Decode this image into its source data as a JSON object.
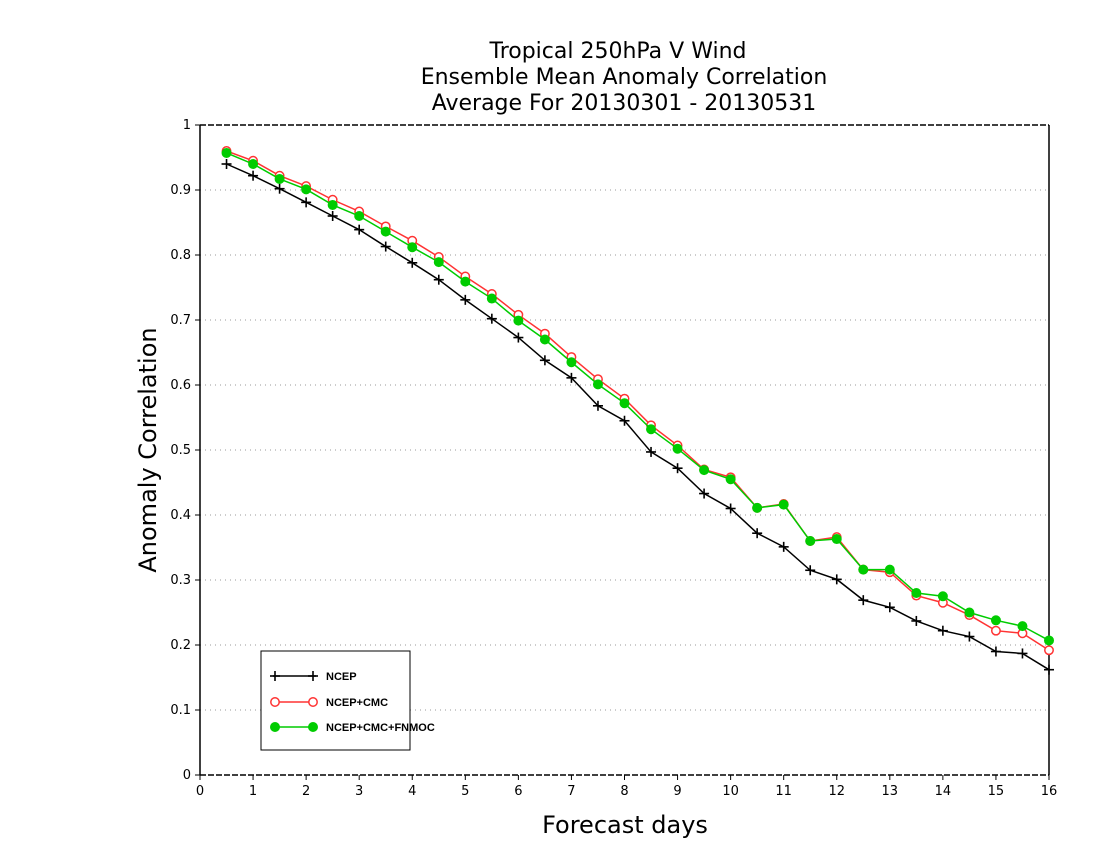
{
  "chart_data": {
    "type": "line",
    "title_lines": [
      "Tropical 250hPa V Wind",
      "Ensemble Mean Anomaly Correlation",
      "Average For 20130301 - 20130531"
    ],
    "xlabel": "Forecast days",
    "ylabel": "Anomaly Correlation",
    "xlim": [
      0,
      16
    ],
    "ylim": [
      0,
      1
    ],
    "xticks": [
      "0",
      "1",
      "2",
      "3",
      "4",
      "5",
      "6",
      "7",
      "8",
      "9",
      "10",
      "11",
      "12",
      "13",
      "14",
      "15",
      "16"
    ],
    "yticks": [
      "0",
      "0.1",
      "0.2",
      "0.3",
      "0.4",
      "0.5",
      "0.6",
      "0.7",
      "0.8",
      "0.9",
      "1"
    ],
    "grid": true,
    "legend_position": "bottom-left",
    "x": [
      0.5,
      1,
      1.5,
      2,
      2.5,
      3,
      3.5,
      4,
      4.5,
      5,
      5.5,
      6,
      6.5,
      7,
      7.5,
      8,
      8.5,
      9,
      9.5,
      10,
      10.5,
      11,
      11.5,
      12,
      12.5,
      13,
      13.5,
      14,
      14.5,
      15,
      15.5,
      16
    ],
    "series": [
      {
        "name": "NCEP",
        "color": "#000000",
        "marker": "plus",
        "values": [
          0.94,
          0.922,
          0.902,
          0.881,
          0.86,
          0.839,
          0.813,
          0.788,
          0.762,
          0.731,
          0.702,
          0.673,
          0.638,
          0.611,
          0.568,
          0.545,
          0.497,
          0.472,
          0.433,
          0.41,
          0.372,
          0.351,
          0.315,
          0.301,
          0.269,
          0.258,
          0.237,
          0.222,
          0.213,
          0.19,
          0.187,
          0.162
        ]
      },
      {
        "name": "NCEP+CMC",
        "color": "#ff3333",
        "marker": "open-circle",
        "values": [
          0.96,
          0.945,
          0.922,
          0.906,
          0.885,
          0.867,
          0.844,
          0.822,
          0.797,
          0.767,
          0.74,
          0.708,
          0.679,
          0.643,
          0.609,
          0.579,
          0.538,
          0.507,
          0.47,
          0.458,
          0.411,
          0.417,
          0.36,
          0.366,
          0.316,
          0.312,
          0.276,
          0.265,
          0.246,
          0.222,
          0.218,
          0.192
        ]
      },
      {
        "name": "NCEP+CMC+FNMOC",
        "color": "#00cc00",
        "marker": "filled-circle",
        "values": [
          0.957,
          0.94,
          0.917,
          0.901,
          0.877,
          0.86,
          0.836,
          0.812,
          0.789,
          0.759,
          0.733,
          0.699,
          0.67,
          0.635,
          0.601,
          0.572,
          0.532,
          0.502,
          0.469,
          0.455,
          0.411,
          0.416,
          0.36,
          0.363,
          0.316,
          0.316,
          0.28,
          0.275,
          0.25,
          0.238,
          0.229,
          0.207
        ]
      }
    ]
  }
}
